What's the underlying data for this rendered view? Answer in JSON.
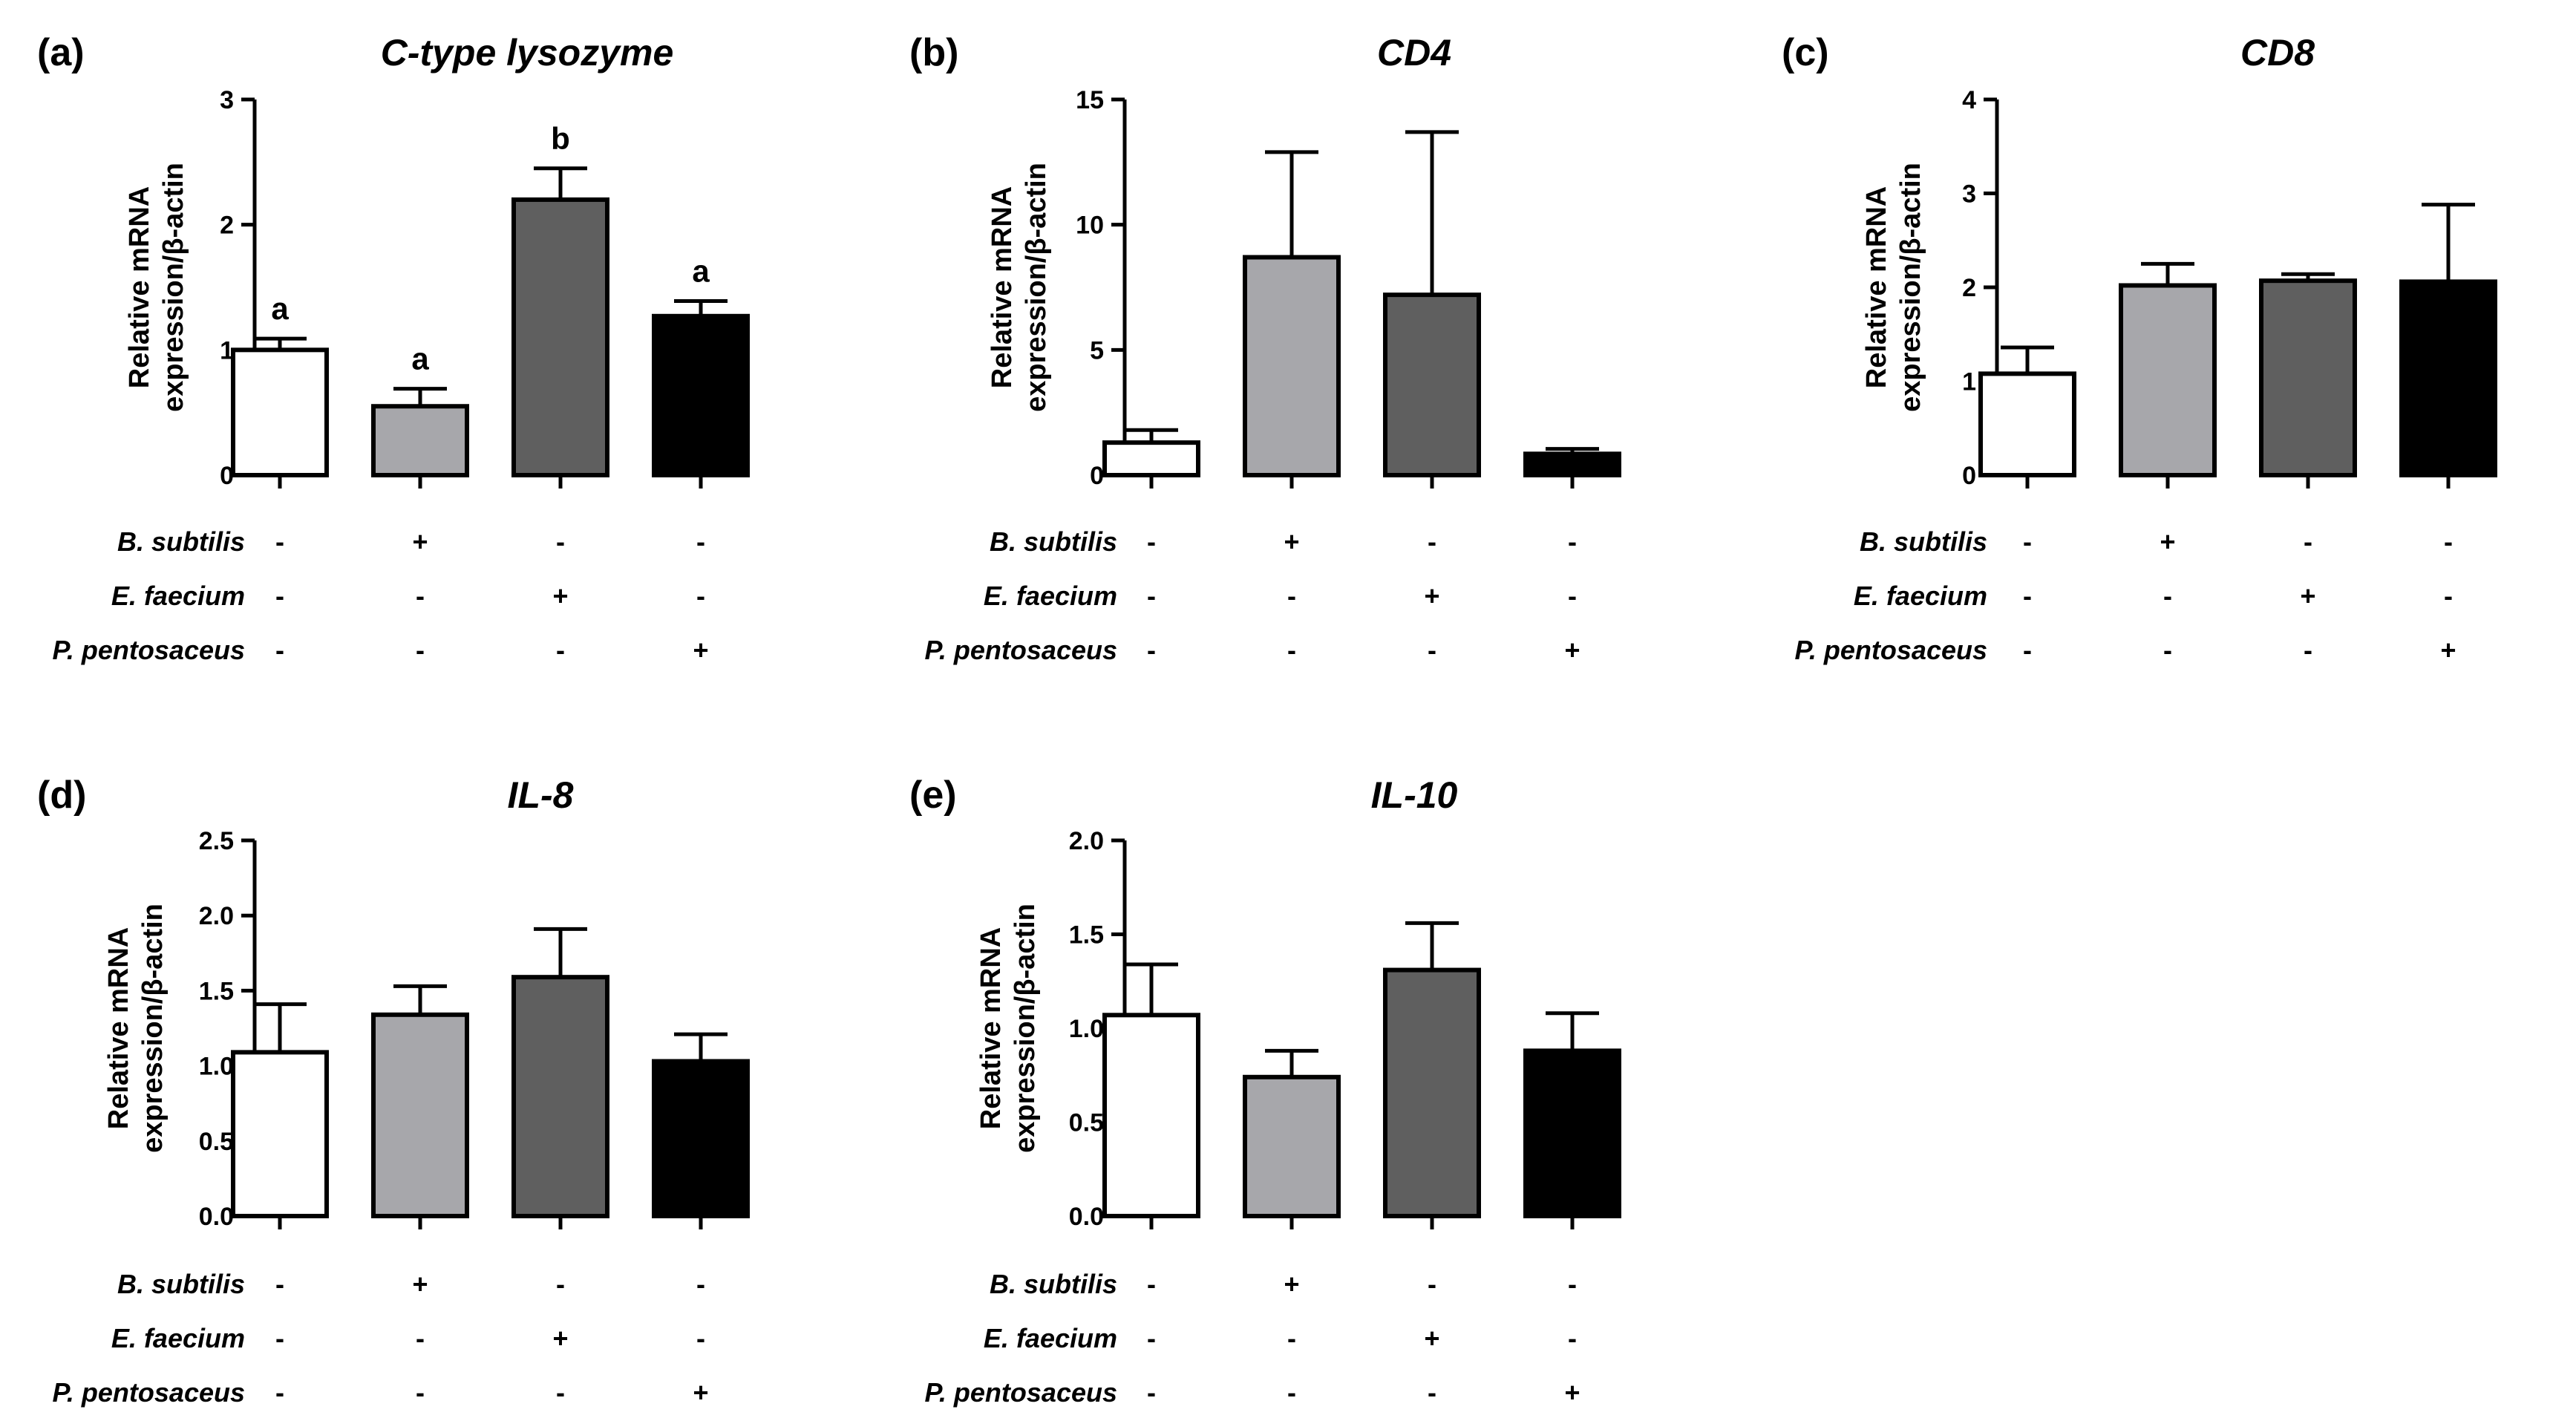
{
  "figure": {
    "condition_labels": [
      "B. subtilis",
      "E. faecium",
      "P. pentosaceus"
    ],
    "treatment_matrix": [
      [
        "-",
        "+",
        "-",
        "-"
      ],
      [
        "-",
        "-",
        "+",
        "-"
      ],
      [
        "-",
        "-",
        "-",
        "+"
      ]
    ]
  },
  "chart_data": [
    {
      "panel": "(a)",
      "type": "bar",
      "title": "C-type lysozyme",
      "ylabel": "Relative mRNA expression/β-actin",
      "xlabel": "",
      "ylim": [
        0,
        3
      ],
      "yticks": [
        "0",
        "1",
        "2",
        "3"
      ],
      "values": [
        1.0,
        0.55,
        2.2,
        1.27
      ],
      "errors": [
        0.09,
        0.14,
        0.25,
        0.12
      ],
      "significance": [
        "a",
        "a",
        "b",
        "a"
      ],
      "fill_colors": [
        "#ffffff",
        "#a7a7ab",
        "#5f5f5f",
        "#000000"
      ]
    },
    {
      "panel": "(b)",
      "type": "bar",
      "title": "CD4",
      "ylabel": "Relative mRNA expression/β-actin",
      "xlabel": "",
      "ylim": [
        0,
        15
      ],
      "yticks": [
        "0",
        "5",
        "10",
        "15"
      ],
      "values": [
        1.3,
        8.7,
        7.2,
        0.85
      ],
      "errors": [
        0.5,
        4.2,
        6.5,
        0.2
      ],
      "significance": [],
      "fill_colors": [
        "#ffffff",
        "#a7a7ab",
        "#5f5f5f",
        "#000000"
      ]
    },
    {
      "panel": "(c)",
      "type": "bar",
      "title": "CD8",
      "ylabel": "Relative mRNA expression/β-actin",
      "xlabel": "",
      "ylim": [
        0,
        4
      ],
      "yticks": [
        "0",
        "1",
        "2",
        "3",
        "4"
      ],
      "values": [
        1.08,
        2.02,
        2.07,
        2.06
      ],
      "errors": [
        0.28,
        0.23,
        0.07,
        0.82
      ],
      "significance": [],
      "fill_colors": [
        "#ffffff",
        "#a7a7ab",
        "#5f5f5f",
        "#000000"
      ]
    },
    {
      "panel": "(d)",
      "type": "bar",
      "title": "IL-8",
      "ylabel": "Relative mRNA expression/β-actin",
      "xlabel": "",
      "ylim": [
        0,
        2.5
      ],
      "yticks": [
        "0.0",
        "0.5",
        "1.0",
        "1.5",
        "2.0",
        "2.5"
      ],
      "values": [
        1.09,
        1.34,
        1.59,
        1.03
      ],
      "errors": [
        0.32,
        0.19,
        0.32,
        0.18
      ],
      "significance": [],
      "fill_colors": [
        "#ffffff",
        "#a7a7ab",
        "#5f5f5f",
        "#000000"
      ]
    },
    {
      "panel": "(e)",
      "type": "bar",
      "title": "IL-10",
      "ylabel": "Relative mRNA expression/β-actin",
      "xlabel": "",
      "ylim": [
        0,
        2.0
      ],
      "yticks": [
        "0.0",
        "0.5",
        "1.0",
        "1.5",
        "2.0"
      ],
      "values": [
        1.07,
        0.74,
        1.31,
        0.88
      ],
      "errors": [
        0.27,
        0.14,
        0.25,
        0.2
      ],
      "significance": [],
      "fill_colors": [
        "#ffffff",
        "#a7a7ab",
        "#5f5f5f",
        "#000000"
      ]
    }
  ]
}
